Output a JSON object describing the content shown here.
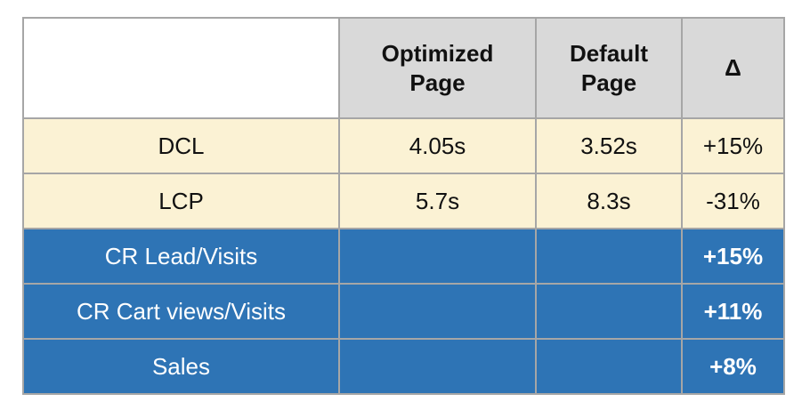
{
  "table": {
    "title_hint": "page performance comparison table",
    "colors": {
      "header_bg": "#d9d9d9",
      "cream_row_bg": "#fbf2d4",
      "blue_row_bg": "#2e74b5",
      "border": "#a6a6a6",
      "blue_row_text": "#ffffff",
      "body_text": "#111111"
    },
    "header": {
      "corner_label": "",
      "col_optimized": "Optimized\nPage",
      "col_default": "Default\nPage",
      "col_delta": "Δ"
    },
    "rows": [
      {
        "theme": "cream",
        "label": "DCL",
        "optimized": "4.05s",
        "default": "3.52s",
        "delta": "+15%"
      },
      {
        "theme": "cream",
        "label": "LCP",
        "optimized": "5.7s",
        "default": "8.3s",
        "delta": "-31%"
      },
      {
        "theme": "blue",
        "label": "CR Lead/Visits",
        "optimized": "",
        "default": "",
        "delta": "+15%"
      },
      {
        "theme": "blue",
        "label": "CR Cart views/Visits",
        "optimized": "",
        "default": "",
        "delta": "+11%"
      },
      {
        "theme": "blue",
        "label": "Sales",
        "optimized": "",
        "default": "",
        "delta": "+8%"
      }
    ]
  }
}
